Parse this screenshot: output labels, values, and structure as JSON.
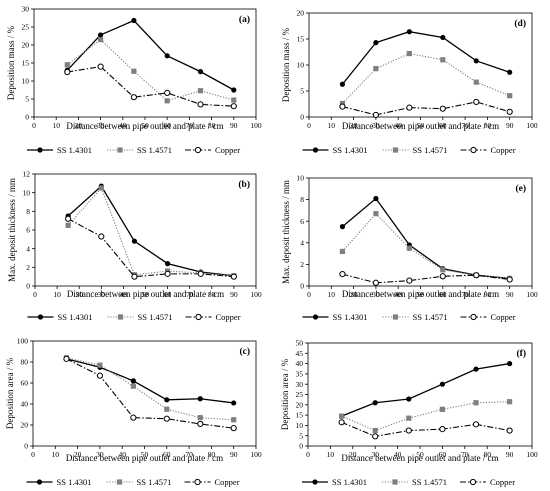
{
  "figure": {
    "panel_count": 6
  },
  "chart_data": [
    {
      "panel": "(a)",
      "type": "line",
      "xlabel": "Distance between pipe outlet and plate / cm",
      "ylabel": "Deposition mass / %",
      "xlim": [
        0,
        100
      ],
      "xticks": [
        0,
        10,
        20,
        30,
        40,
        50,
        60,
        70,
        80,
        90,
        100
      ],
      "ylim": [
        0,
        30
      ],
      "yticks": [
        0,
        5,
        10,
        15,
        20,
        25,
        30
      ],
      "grid": false,
      "legend": "bottom",
      "x": [
        15,
        30,
        45,
        60,
        75,
        90
      ],
      "series": [
        {
          "name": "SS 1.4301",
          "style": "solid",
          "marker": "filled-circle",
          "color": "#000000",
          "values": [
            13,
            22.8,
            26.8,
            17,
            12.6,
            7.5
          ]
        },
        {
          "name": "SS 1.4571",
          "style": "dotted",
          "marker": "filled-square",
          "color": "#7f7f7f",
          "values": [
            14.5,
            21.5,
            12.7,
            4.5,
            7.3,
            4.7
          ]
        },
        {
          "name": "Copper",
          "style": "dashdot",
          "marker": "open-circle",
          "color": "#000000",
          "values": [
            12.5,
            14,
            5.5,
            6.7,
            3.5,
            3
          ]
        }
      ]
    },
    {
      "panel": "(b)",
      "type": "line",
      "xlabel": "Distance between pipe outlet and plate / cm",
      "ylabel": "Max. deposit thickness / mm",
      "xlim": [
        0,
        100
      ],
      "xticks": [
        0,
        10,
        20,
        30,
        40,
        50,
        60,
        70,
        80,
        90,
        100
      ],
      "ylim": [
        0,
        12
      ],
      "yticks": [
        0,
        2,
        4,
        6,
        8,
        10,
        12
      ],
      "grid": false,
      "legend": "bottom",
      "x": [
        15,
        30,
        45,
        60,
        75,
        90
      ],
      "series": [
        {
          "name": "SS 1.4301",
          "style": "solid",
          "marker": "filled-circle",
          "color": "#000000",
          "values": [
            7.5,
            10.7,
            4.8,
            2.4,
            1.5,
            1.1
          ]
        },
        {
          "name": "SS 1.4571",
          "style": "dotted",
          "marker": "filled-square",
          "color": "#7f7f7f",
          "values": [
            6.5,
            10.5,
            1.2,
            1.6,
            1.4,
            1.1
          ]
        },
        {
          "name": "Copper",
          "style": "dashdot",
          "marker": "open-circle",
          "color": "#000000",
          "values": [
            7.2,
            5.3,
            1,
            1.3,
            1.3,
            1
          ]
        }
      ]
    },
    {
      "panel": "(c)",
      "type": "line",
      "xlabel": "Distance between pipe outlet and plate / cm",
      "ylabel": "Deposition area / %",
      "xlim": [
        0,
        100
      ],
      "xticks": [
        0,
        10,
        20,
        30,
        40,
        50,
        60,
        70,
        80,
        90,
        100
      ],
      "ylim": [
        0,
        100
      ],
      "yticks": [
        0,
        20,
        40,
        60,
        80,
        100
      ],
      "grid": false,
      "legend": "bottom",
      "x": [
        15,
        30,
        45,
        60,
        75,
        90
      ],
      "series": [
        {
          "name": "SS 1.4301",
          "style": "solid",
          "marker": "filled-circle",
          "color": "#000000",
          "values": [
            83,
            75,
            62,
            44,
            45,
            41
          ]
        },
        {
          "name": "SS 1.4571",
          "style": "dotted",
          "marker": "filled-square",
          "color": "#7f7f7f",
          "values": [
            84,
            77,
            57,
            35,
            27,
            25
          ]
        },
        {
          "name": "Copper",
          "style": "dashdot",
          "marker": "open-circle",
          "color": "#000000",
          "values": [
            83,
            67,
            27,
            26,
            21,
            17
          ]
        }
      ]
    },
    {
      "panel": "(d)",
      "type": "line",
      "xlabel": "Distance between pipe outlet and plate / cm",
      "ylabel": "Deposition mass / %",
      "xlim": [
        0,
        100
      ],
      "xticks": [
        0,
        10,
        20,
        30,
        40,
        50,
        60,
        70,
        80,
        90,
        100
      ],
      "ylim": [
        0,
        20
      ],
      "yticks": [
        0,
        5,
        10,
        15,
        20
      ],
      "grid": false,
      "legend": "bottom",
      "x": [
        15,
        30,
        45,
        60,
        75,
        90
      ],
      "series": [
        {
          "name": "SS 1.4301",
          "style": "solid",
          "marker": "filled-circle",
          "color": "#000000",
          "values": [
            6.3,
            14.3,
            16.4,
            15.3,
            10.8,
            8.6
          ]
        },
        {
          "name": "SS 1.4571",
          "style": "dotted",
          "marker": "filled-square",
          "color": "#7f7f7f",
          "values": [
            2.6,
            9.3,
            12.2,
            11,
            6.7,
            4.1
          ]
        },
        {
          "name": "Copper",
          "style": "dashdot",
          "marker": "open-circle",
          "color": "#000000",
          "values": [
            2,
            0.4,
            1.8,
            1.6,
            2.9,
            1
          ]
        }
      ]
    },
    {
      "panel": "(e)",
      "type": "line",
      "xlabel": "Distance between pipe outlet and plate / cm",
      "ylabel": "Max. deposit thickness / mm",
      "xlim": [
        0,
        100
      ],
      "xticks": [
        0,
        10,
        20,
        30,
        40,
        50,
        60,
        70,
        80,
        90,
        100
      ],
      "ylim": [
        0,
        10
      ],
      "yticks": [
        0,
        2,
        4,
        6,
        8,
        10
      ],
      "grid": false,
      "legend": "bottom",
      "x": [
        15,
        30,
        45,
        60,
        75,
        90
      ],
      "series": [
        {
          "name": "SS 1.4301",
          "style": "solid",
          "marker": "filled-circle",
          "color": "#000000",
          "values": [
            5.5,
            8.1,
            3.8,
            1.6,
            1,
            0.7
          ]
        },
        {
          "name": "SS 1.4571",
          "style": "dotted",
          "marker": "filled-square",
          "color": "#7f7f7f",
          "values": [
            3.2,
            6.7,
            3.5,
            1.5,
            1,
            0.7
          ]
        },
        {
          "name": "Copper",
          "style": "dashdot",
          "marker": "open-circle",
          "color": "#000000",
          "values": [
            1.1,
            0.3,
            0.5,
            0.9,
            1,
            0.6
          ]
        }
      ]
    },
    {
      "panel": "(f)",
      "type": "line",
      "xlabel": "Distance between pipe outlet and plate / cm",
      "ylabel": "Deposition area / %",
      "xlim": [
        0,
        100
      ],
      "xticks": [
        0,
        10,
        20,
        30,
        40,
        50,
        60,
        70,
        80,
        90,
        100
      ],
      "ylim": [
        0,
        50
      ],
      "yticks": [
        0,
        5,
        10,
        15,
        20,
        25,
        30,
        35,
        40,
        45,
        50
      ],
      "grid": false,
      "legend": "bottom",
      "x": [
        15,
        30,
        45,
        60,
        75,
        90
      ],
      "series": [
        {
          "name": "SS 1.4301",
          "style": "solid",
          "marker": "filled-circle",
          "color": "#000000",
          "values": [
            14.5,
            21,
            22.8,
            30,
            37.3,
            40
          ]
        },
        {
          "name": "SS 1.4571",
          "style": "dotted",
          "marker": "filled-square",
          "color": "#7f7f7f",
          "values": [
            14.5,
            7.5,
            13.5,
            17.8,
            21,
            21.5
          ]
        },
        {
          "name": "Copper",
          "style": "dashdot",
          "marker": "open-circle",
          "color": "#000000",
          "values": [
            11.5,
            4.7,
            7.5,
            8.2,
            10.5,
            7.5
          ]
        }
      ]
    }
  ]
}
